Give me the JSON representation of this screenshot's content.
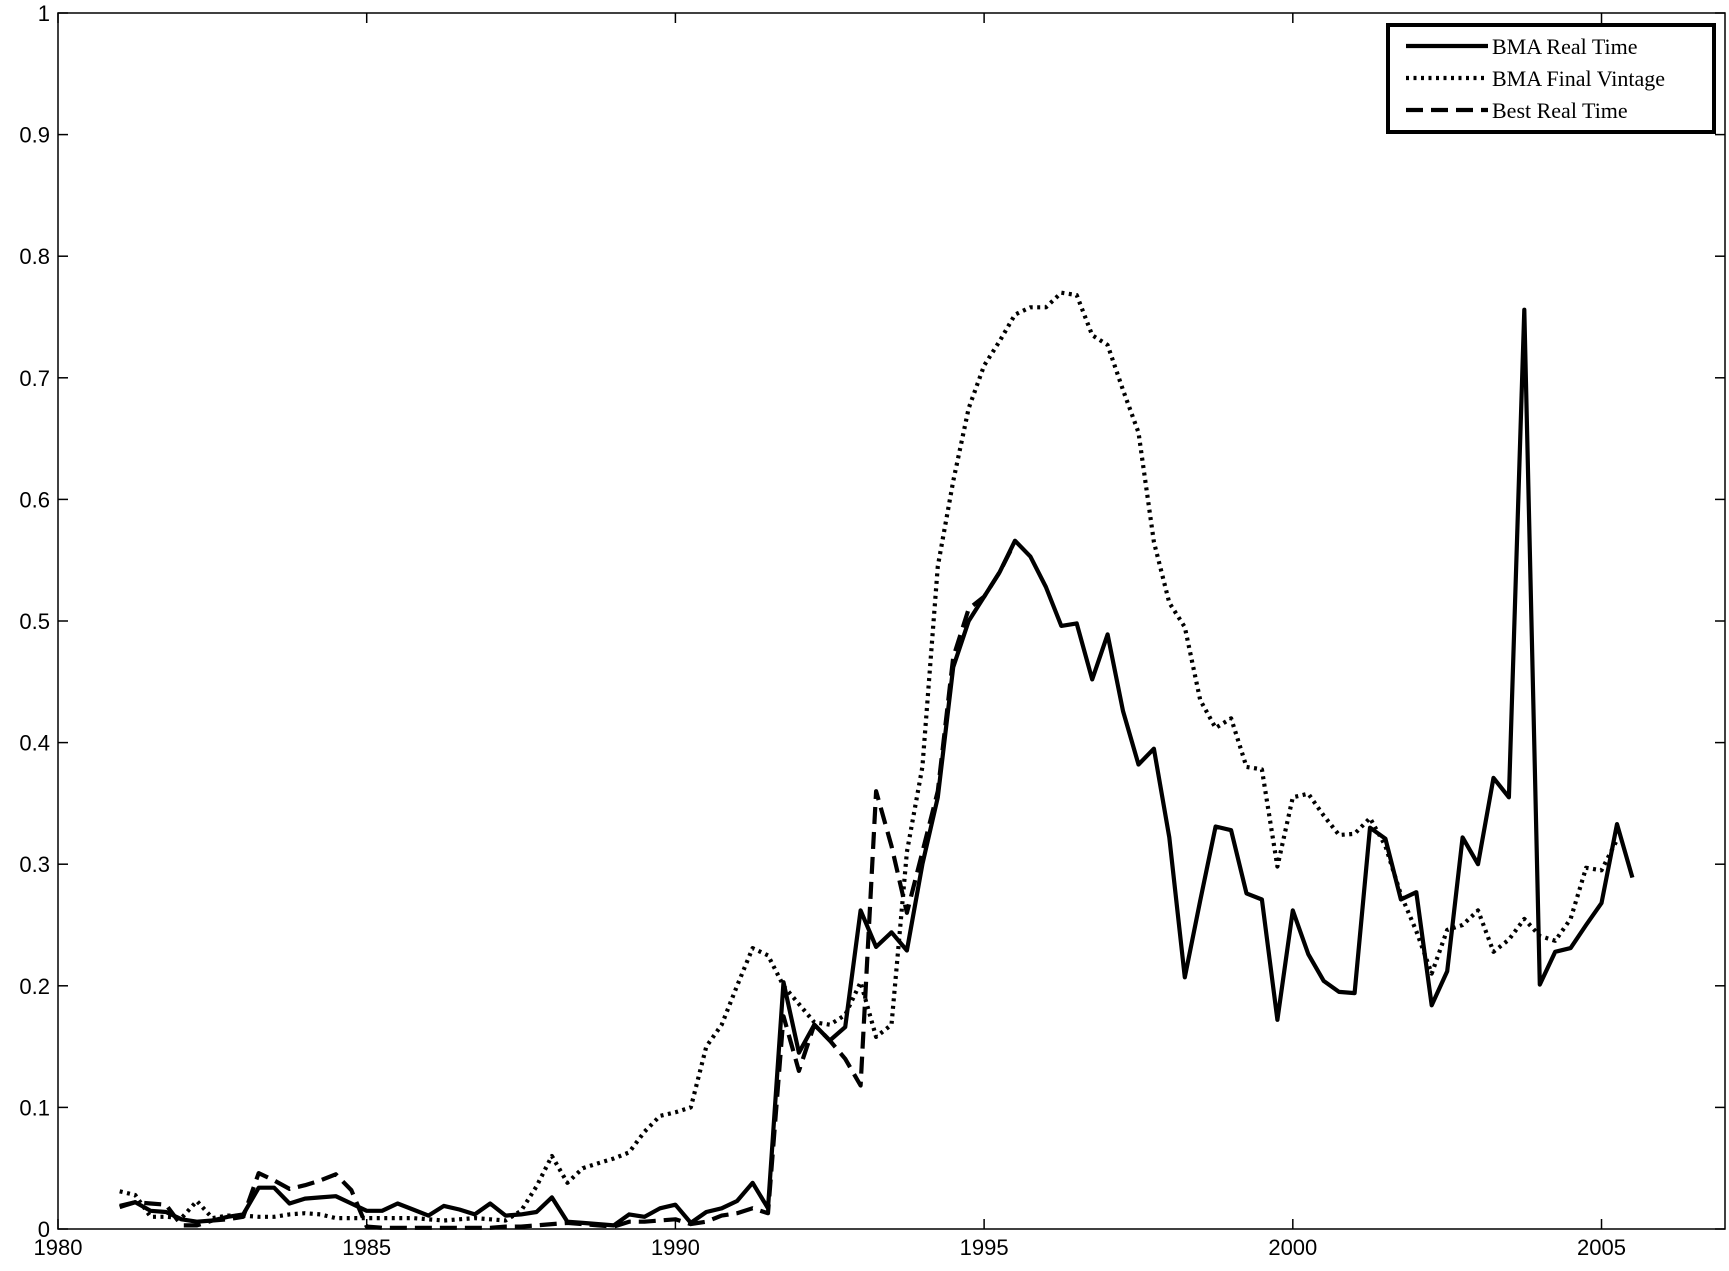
{
  "chart_data": {
    "type": "line",
    "title": "",
    "xlabel": "",
    "ylabel": "",
    "xlim": [
      1980,
      2007
    ],
    "ylim": [
      0,
      1
    ],
    "grid": false,
    "legend_position": "top-right",
    "x_ticks": [
      1980,
      1985,
      1990,
      1995,
      2000,
      2005
    ],
    "x_tick_labels": [
      "1980",
      "1985",
      "1990",
      "1995",
      "2000",
      "2005"
    ],
    "y_ticks": [
      0,
      0.1,
      0.2,
      0.3,
      0.4,
      0.5,
      0.6,
      0.7,
      0.8,
      0.9,
      1
    ],
    "y_tick_labels": [
      "0",
      "0.1",
      "0.2",
      "0.3",
      "0.4",
      "0.5",
      "0.6",
      "0.7",
      "0.8",
      "0.9",
      "1"
    ],
    "series": [
      {
        "name": "BMA Real Time",
        "style": "solid",
        "color": "#000000",
        "points": [
          [
            1981.0,
            0.018
          ],
          [
            1981.25,
            0.022
          ],
          [
            1981.5,
            0.015
          ],
          [
            1981.75,
            0.014
          ],
          [
            1982.0,
            0.008
          ],
          [
            1982.25,
            0.006
          ],
          [
            1982.5,
            0.007
          ],
          [
            1982.75,
            0.01
          ],
          [
            1983.0,
            0.012
          ],
          [
            1983.25,
            0.034
          ],
          [
            1983.5,
            0.034
          ],
          [
            1983.75,
            0.021
          ],
          [
            1984.0,
            0.025
          ],
          [
            1984.25,
            0.026
          ],
          [
            1984.5,
            0.027
          ],
          [
            1984.75,
            0.021
          ],
          [
            1985.0,
            0.015
          ],
          [
            1985.25,
            0.015
          ],
          [
            1985.5,
            0.021
          ],
          [
            1985.75,
            0.016
          ],
          [
            1986.0,
            0.011
          ],
          [
            1986.25,
            0.019
          ],
          [
            1986.5,
            0.016
          ],
          [
            1986.75,
            0.012
          ],
          [
            1987.0,
            0.021
          ],
          [
            1987.25,
            0.011
          ],
          [
            1987.5,
            0.012
          ],
          [
            1987.75,
            0.014
          ],
          [
            1988.0,
            0.026
          ],
          [
            1988.25,
            0.006
          ],
          [
            1988.5,
            0.005
          ],
          [
            1988.75,
            0.004
          ],
          [
            1989.0,
            0.003
          ],
          [
            1989.25,
            0.012
          ],
          [
            1989.5,
            0.01
          ],
          [
            1989.75,
            0.017
          ],
          [
            1990.0,
            0.02
          ],
          [
            1990.25,
            0.005
          ],
          [
            1990.5,
            0.014
          ],
          [
            1990.75,
            0.017
          ],
          [
            1991.0,
            0.023
          ],
          [
            1991.25,
            0.038
          ],
          [
            1991.5,
            0.017
          ],
          [
            1991.75,
            0.203
          ],
          [
            1992.0,
            0.145
          ],
          [
            1992.25,
            0.168
          ],
          [
            1992.5,
            0.155
          ],
          [
            1992.75,
            0.166
          ],
          [
            1993.0,
            0.262
          ],
          [
            1993.25,
            0.232
          ],
          [
            1993.5,
            0.244
          ],
          [
            1993.75,
            0.229
          ],
          [
            1994.0,
            0.3
          ],
          [
            1994.25,
            0.355
          ],
          [
            1994.5,
            0.462
          ],
          [
            1994.75,
            0.5
          ],
          [
            1995.0,
            0.52
          ],
          [
            1995.25,
            0.54
          ],
          [
            1995.5,
            0.566
          ],
          [
            1995.75,
            0.553
          ],
          [
            1996.0,
            0.528
          ],
          [
            1996.25,
            0.496
          ],
          [
            1996.5,
            0.498
          ],
          [
            1996.75,
            0.452
          ],
          [
            1997.0,
            0.489
          ],
          [
            1997.25,
            0.426
          ],
          [
            1997.5,
            0.382
          ],
          [
            1997.75,
            0.395
          ],
          [
            1998.0,
            0.322
          ],
          [
            1998.25,
            0.207
          ],
          [
            1998.5,
            0.27
          ],
          [
            1998.75,
            0.331
          ],
          [
            1999.0,
            0.328
          ],
          [
            1999.25,
            0.276
          ],
          [
            1999.5,
            0.271
          ],
          [
            1999.75,
            0.172
          ],
          [
            2000.0,
            0.262
          ],
          [
            2000.25,
            0.226
          ],
          [
            2000.5,
            0.204
          ],
          [
            2000.75,
            0.195
          ],
          [
            2001.0,
            0.194
          ],
          [
            2001.25,
            0.33
          ],
          [
            2001.5,
            0.321
          ],
          [
            2001.75,
            0.271
          ],
          [
            2002.0,
            0.277
          ],
          [
            2002.25,
            0.184
          ],
          [
            2002.5,
            0.212
          ],
          [
            2002.75,
            0.322
          ],
          [
            2003.0,
            0.3
          ],
          [
            2003.25,
            0.371
          ],
          [
            2003.5,
            0.355
          ],
          [
            2003.75,
            0.756
          ],
          [
            2004.0,
            0.201
          ],
          [
            2004.25,
            0.228
          ],
          [
            2004.5,
            0.231
          ],
          [
            2004.75,
            0.25
          ],
          [
            2005.0,
            0.268
          ],
          [
            2005.25,
            0.333
          ],
          [
            2005.5,
            0.289
          ]
        ]
      },
      {
        "name": "BMA Final Vintage",
        "style": "dotted",
        "color": "#000000",
        "points": [
          [
            1981.0,
            0.031
          ],
          [
            1981.25,
            0.028
          ],
          [
            1981.5,
            0.01
          ],
          [
            1981.75,
            0.01
          ],
          [
            1982.0,
            0.009
          ],
          [
            1982.25,
            0.023
          ],
          [
            1982.5,
            0.009
          ],
          [
            1982.75,
            0.011
          ],
          [
            1983.0,
            0.011
          ],
          [
            1983.25,
            0.01
          ],
          [
            1983.5,
            0.01
          ],
          [
            1983.75,
            0.012
          ],
          [
            1984.0,
            0.013
          ],
          [
            1984.25,
            0.012
          ],
          [
            1984.5,
            0.009
          ],
          [
            1984.75,
            0.009
          ],
          [
            1985.0,
            0.009
          ],
          [
            1985.25,
            0.009
          ],
          [
            1985.5,
            0.009
          ],
          [
            1985.75,
            0.009
          ],
          [
            1986.0,
            0.008
          ],
          [
            1986.25,
            0.007
          ],
          [
            1986.5,
            0.008
          ],
          [
            1986.75,
            0.009
          ],
          [
            1987.0,
            0.008
          ],
          [
            1987.25,
            0.007
          ],
          [
            1987.5,
            0.015
          ],
          [
            1987.75,
            0.035
          ],
          [
            1988.0,
            0.06
          ],
          [
            1988.25,
            0.038
          ],
          [
            1988.5,
            0.05
          ],
          [
            1988.75,
            0.054
          ],
          [
            1989.0,
            0.058
          ],
          [
            1989.25,
            0.063
          ],
          [
            1989.5,
            0.08
          ],
          [
            1989.75,
            0.093
          ],
          [
            1990.0,
            0.096
          ],
          [
            1990.25,
            0.1
          ],
          [
            1990.5,
            0.15
          ],
          [
            1990.75,
            0.168
          ],
          [
            1991.0,
            0.2
          ],
          [
            1991.25,
            0.231
          ],
          [
            1991.5,
            0.225
          ],
          [
            1991.75,
            0.2
          ],
          [
            1992.0,
            0.185
          ],
          [
            1992.25,
            0.17
          ],
          [
            1992.5,
            0.168
          ],
          [
            1992.75,
            0.176
          ],
          [
            1993.0,
            0.203
          ],
          [
            1993.25,
            0.158
          ],
          [
            1993.5,
            0.168
          ],
          [
            1993.75,
            0.31
          ],
          [
            1994.0,
            0.38
          ],
          [
            1994.25,
            0.545
          ],
          [
            1994.5,
            0.615
          ],
          [
            1994.75,
            0.675
          ],
          [
            1995.0,
            0.71
          ],
          [
            1995.25,
            0.73
          ],
          [
            1995.5,
            0.752
          ],
          [
            1995.75,
            0.758
          ],
          [
            1996.0,
            0.758
          ],
          [
            1996.25,
            0.77
          ],
          [
            1996.5,
            0.768
          ],
          [
            1996.75,
            0.735
          ],
          [
            1997.0,
            0.727
          ],
          [
            1997.25,
            0.69
          ],
          [
            1997.5,
            0.655
          ],
          [
            1997.75,
            0.565
          ],
          [
            1998.0,
            0.515
          ],
          [
            1998.25,
            0.495
          ],
          [
            1998.5,
            0.435
          ],
          [
            1998.75,
            0.412
          ],
          [
            1999.0,
            0.42
          ],
          [
            1999.25,
            0.38
          ],
          [
            1999.5,
            0.378
          ],
          [
            1999.75,
            0.298
          ],
          [
            2000.0,
            0.355
          ],
          [
            2000.25,
            0.358
          ],
          [
            2000.5,
            0.34
          ],
          [
            2000.75,
            0.324
          ],
          [
            2001.0,
            0.325
          ],
          [
            2001.25,
            0.338
          ],
          [
            2001.5,
            0.315
          ],
          [
            2001.75,
            0.275
          ],
          [
            2002.0,
            0.245
          ],
          [
            2002.25,
            0.21
          ],
          [
            2002.5,
            0.246
          ],
          [
            2002.75,
            0.25
          ],
          [
            2003.0,
            0.262
          ],
          [
            2003.25,
            0.228
          ],
          [
            2003.5,
            0.238
          ],
          [
            2003.75,
            0.255
          ],
          [
            2004.0,
            0.241
          ],
          [
            2004.25,
            0.237
          ],
          [
            2004.5,
            0.255
          ],
          [
            2004.75,
            0.297
          ],
          [
            2005.0,
            0.295
          ],
          [
            2005.25,
            0.32
          ]
        ]
      },
      {
        "name": "Best Real Time",
        "style": "dashed",
        "color": "#000000",
        "points": [
          [
            1981.0,
            0.019
          ],
          [
            1981.25,
            0.022
          ],
          [
            1981.5,
            0.021
          ],
          [
            1981.75,
            0.02
          ],
          [
            1982.0,
            0.003
          ],
          [
            1982.25,
            0.003
          ],
          [
            1982.5,
            0.007
          ],
          [
            1982.75,
            0.008
          ],
          [
            1983.0,
            0.01
          ],
          [
            1983.25,
            0.046
          ],
          [
            1983.5,
            0.04
          ],
          [
            1983.75,
            0.033
          ],
          [
            1984.0,
            0.036
          ],
          [
            1984.25,
            0.04
          ],
          [
            1984.5,
            0.045
          ],
          [
            1984.75,
            0.032
          ],
          [
            1985.0,
            0.002
          ],
          [
            1985.25,
            0.001
          ],
          [
            1985.5,
            0.001
          ],
          [
            1985.75,
            0.001
          ],
          [
            1986.0,
            0.001
          ],
          [
            1986.25,
            0.001
          ],
          [
            1986.5,
            0.001
          ],
          [
            1986.75,
            0.001
          ],
          [
            1987.0,
            0.001
          ],
          [
            1987.25,
            0.002
          ],
          [
            1987.5,
            0.002
          ],
          [
            1987.75,
            0.003
          ],
          [
            1988.0,
            0.004
          ],
          [
            1988.25,
            0.005
          ],
          [
            1988.5,
            0.004
          ],
          [
            1988.75,
            0.003
          ],
          [
            1989.0,
            0.002
          ],
          [
            1989.25,
            0.006
          ],
          [
            1989.5,
            0.006
          ],
          [
            1989.75,
            0.007
          ],
          [
            1990.0,
            0.008
          ],
          [
            1990.25,
            0.004
          ],
          [
            1990.5,
            0.006
          ],
          [
            1990.75,
            0.011
          ],
          [
            1991.0,
            0.013
          ],
          [
            1991.25,
            0.017
          ],
          [
            1991.5,
            0.013
          ],
          [
            1991.75,
            0.175
          ],
          [
            1992.0,
            0.13
          ],
          [
            1992.25,
            0.168
          ],
          [
            1992.5,
            0.155
          ],
          [
            1992.75,
            0.14
          ],
          [
            1993.0,
            0.118
          ],
          [
            1993.25,
            0.36
          ],
          [
            1993.5,
            0.315
          ],
          [
            1993.75,
            0.26
          ],
          [
            1994.0,
            0.31
          ],
          [
            1994.25,
            0.36
          ],
          [
            1994.5,
            0.47
          ],
          [
            1994.75,
            0.51
          ],
          [
            1995.0,
            0.52
          ],
          [
            1995.25,
            0.54
          ],
          [
            1995.5,
            0.565
          ]
        ]
      }
    ]
  }
}
